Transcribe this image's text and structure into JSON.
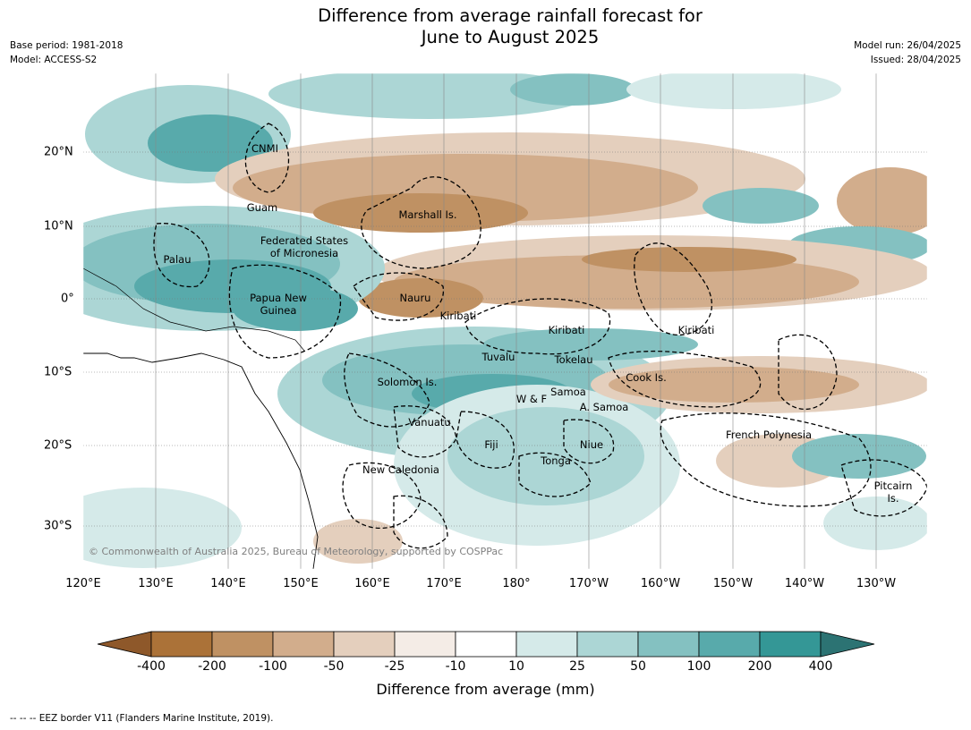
{
  "header": {
    "title_line1": "Difference from average rainfall forecast for",
    "title_line2": "June to August 2025",
    "base_period": "Base period: 1981-2018",
    "model": "Model: ACCESS-S2",
    "model_run": "Model run: 26/04/2025",
    "issued": "Issued: 28/04/2025"
  },
  "axes": {
    "lon_labels": [
      "120°E",
      "130°E",
      "140°E",
      "150°E",
      "160°E",
      "170°E",
      "180°",
      "170°W",
      "160°W",
      "150°W",
      "140°W",
      "130°W"
    ],
    "lat_labels": [
      "20°N",
      "10°N",
      "0°",
      "10°S",
      "20°S",
      "30°S"
    ]
  },
  "regions": [
    {
      "name": "CNMI"
    },
    {
      "name": "Guam"
    },
    {
      "name": "Marshall Is."
    },
    {
      "name": "Federated States\nof Micronesia"
    },
    {
      "name": "Palau"
    },
    {
      "name": "Papua New\nGuinea"
    },
    {
      "name": "Nauru"
    },
    {
      "name": "Kiribati"
    },
    {
      "name": "Kiribati"
    },
    {
      "name": "Kiribati"
    },
    {
      "name": "Tuvalu"
    },
    {
      "name": "Tokelau"
    },
    {
      "name": "Cook Is."
    },
    {
      "name": "Solomon Is."
    },
    {
      "name": "Samoa"
    },
    {
      "name": "W & F"
    },
    {
      "name": "A. Samoa"
    },
    {
      "name": "Vanuatu"
    },
    {
      "name": "Fiji"
    },
    {
      "name": "Niue"
    },
    {
      "name": "French Polynesia"
    },
    {
      "name": "Tonga"
    },
    {
      "name": "New Caledonia"
    },
    {
      "name": "Pitcairn\nIs."
    }
  ],
  "copyright": "© Commonwealth of Australia 2025, Bureau of Meteorology, supported by COSPPac",
  "colorbar": {
    "title": "Difference from average (mm)",
    "ticks": [
      "-400",
      "-200",
      "-100",
      "-50",
      "-25",
      "-10",
      "10",
      "25",
      "50",
      "100",
      "200",
      "400"
    ],
    "colors": [
      "#ab7238",
      "#bf9163",
      "#d2ad8c",
      "#e4cfbd",
      "#f4ece6",
      "#ffffff",
      "#d5eae9",
      "#acd6d5",
      "#84c1c1",
      "#58aaab",
      "#349796"
    ],
    "extend_low_color": "#8e582a",
    "extend_high_color": "#2c7373"
  },
  "footer": "--  --  -- EEZ border V11 (Flanders Marine Institute, 2019)."
}
